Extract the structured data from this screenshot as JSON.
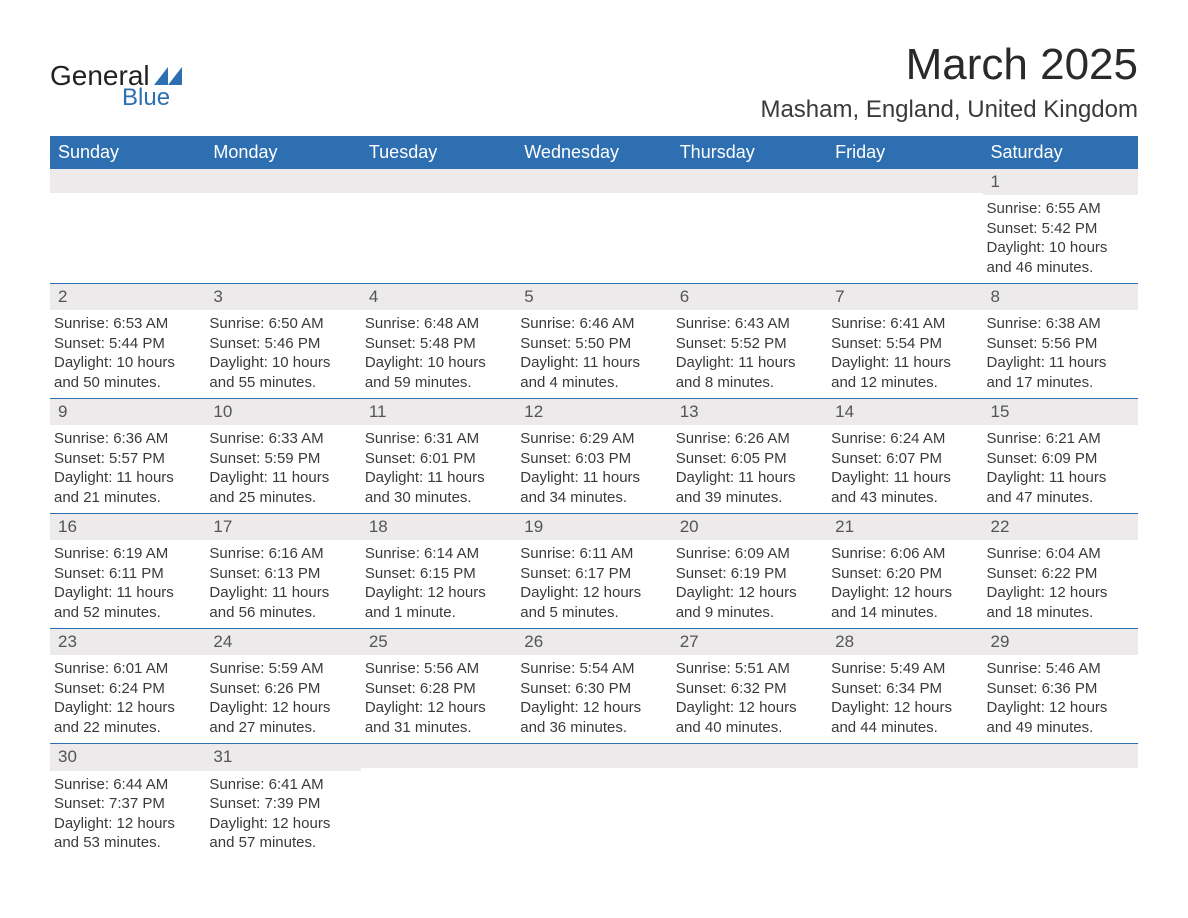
{
  "logo": {
    "text1": "General",
    "text2": "Blue",
    "shape_color": "#2d6fb0"
  },
  "header": {
    "title": "March 2025",
    "location": "Masham, England, United Kingdom",
    "title_fontsize": 44,
    "location_fontsize": 24
  },
  "colors": {
    "header_bg": "#2d6fb0",
    "header_text": "#ffffff",
    "daynum_bg": "#eceaea",
    "text": "#3a3a3a",
    "row_divider": "#2d6fb0",
    "background": "#ffffff"
  },
  "weekdays": [
    "Sunday",
    "Monday",
    "Tuesday",
    "Wednesday",
    "Thursday",
    "Friday",
    "Saturday"
  ],
  "labels": {
    "sunrise": "Sunrise:",
    "sunset": "Sunset:",
    "daylight": "Daylight:"
  },
  "weeks": [
    [
      {
        "empty": true
      },
      {
        "empty": true
      },
      {
        "empty": true
      },
      {
        "empty": true
      },
      {
        "empty": true
      },
      {
        "empty": true
      },
      {
        "day": "1",
        "sunrise": "6:55 AM",
        "sunset": "5:42 PM",
        "daylight": "10 hours and 46 minutes."
      }
    ],
    [
      {
        "day": "2",
        "sunrise": "6:53 AM",
        "sunset": "5:44 PM",
        "daylight": "10 hours and 50 minutes."
      },
      {
        "day": "3",
        "sunrise": "6:50 AM",
        "sunset": "5:46 PM",
        "daylight": "10 hours and 55 minutes."
      },
      {
        "day": "4",
        "sunrise": "6:48 AM",
        "sunset": "5:48 PM",
        "daylight": "10 hours and 59 minutes."
      },
      {
        "day": "5",
        "sunrise": "6:46 AM",
        "sunset": "5:50 PM",
        "daylight": "11 hours and 4 minutes."
      },
      {
        "day": "6",
        "sunrise": "6:43 AM",
        "sunset": "5:52 PM",
        "daylight": "11 hours and 8 minutes."
      },
      {
        "day": "7",
        "sunrise": "6:41 AM",
        "sunset": "5:54 PM",
        "daylight": "11 hours and 12 minutes."
      },
      {
        "day": "8",
        "sunrise": "6:38 AM",
        "sunset": "5:56 PM",
        "daylight": "11 hours and 17 minutes."
      }
    ],
    [
      {
        "day": "9",
        "sunrise": "6:36 AM",
        "sunset": "5:57 PM",
        "daylight": "11 hours and 21 minutes."
      },
      {
        "day": "10",
        "sunrise": "6:33 AM",
        "sunset": "5:59 PM",
        "daylight": "11 hours and 25 minutes."
      },
      {
        "day": "11",
        "sunrise": "6:31 AM",
        "sunset": "6:01 PM",
        "daylight": "11 hours and 30 minutes."
      },
      {
        "day": "12",
        "sunrise": "6:29 AM",
        "sunset": "6:03 PM",
        "daylight": "11 hours and 34 minutes."
      },
      {
        "day": "13",
        "sunrise": "6:26 AM",
        "sunset": "6:05 PM",
        "daylight": "11 hours and 39 minutes."
      },
      {
        "day": "14",
        "sunrise": "6:24 AM",
        "sunset": "6:07 PM",
        "daylight": "11 hours and 43 minutes."
      },
      {
        "day": "15",
        "sunrise": "6:21 AM",
        "sunset": "6:09 PM",
        "daylight": "11 hours and 47 minutes."
      }
    ],
    [
      {
        "day": "16",
        "sunrise": "6:19 AM",
        "sunset": "6:11 PM",
        "daylight": "11 hours and 52 minutes."
      },
      {
        "day": "17",
        "sunrise": "6:16 AM",
        "sunset": "6:13 PM",
        "daylight": "11 hours and 56 minutes."
      },
      {
        "day": "18",
        "sunrise": "6:14 AM",
        "sunset": "6:15 PM",
        "daylight": "12 hours and 1 minute."
      },
      {
        "day": "19",
        "sunrise": "6:11 AM",
        "sunset": "6:17 PM",
        "daylight": "12 hours and 5 minutes."
      },
      {
        "day": "20",
        "sunrise": "6:09 AM",
        "sunset": "6:19 PM",
        "daylight": "12 hours and 9 minutes."
      },
      {
        "day": "21",
        "sunrise": "6:06 AM",
        "sunset": "6:20 PM",
        "daylight": "12 hours and 14 minutes."
      },
      {
        "day": "22",
        "sunrise": "6:04 AM",
        "sunset": "6:22 PM",
        "daylight": "12 hours and 18 minutes."
      }
    ],
    [
      {
        "day": "23",
        "sunrise": "6:01 AM",
        "sunset": "6:24 PM",
        "daylight": "12 hours and 22 minutes."
      },
      {
        "day": "24",
        "sunrise": "5:59 AM",
        "sunset": "6:26 PM",
        "daylight": "12 hours and 27 minutes."
      },
      {
        "day": "25",
        "sunrise": "5:56 AM",
        "sunset": "6:28 PM",
        "daylight": "12 hours and 31 minutes."
      },
      {
        "day": "26",
        "sunrise": "5:54 AM",
        "sunset": "6:30 PM",
        "daylight": "12 hours and 36 minutes."
      },
      {
        "day": "27",
        "sunrise": "5:51 AM",
        "sunset": "6:32 PM",
        "daylight": "12 hours and 40 minutes."
      },
      {
        "day": "28",
        "sunrise": "5:49 AM",
        "sunset": "6:34 PM",
        "daylight": "12 hours and 44 minutes."
      },
      {
        "day": "29",
        "sunrise": "5:46 AM",
        "sunset": "6:36 PM",
        "daylight": "12 hours and 49 minutes."
      }
    ],
    [
      {
        "day": "30",
        "sunrise": "6:44 AM",
        "sunset": "7:37 PM",
        "daylight": "12 hours and 53 minutes."
      },
      {
        "day": "31",
        "sunrise": "6:41 AM",
        "sunset": "7:39 PM",
        "daylight": "12 hours and 57 minutes."
      },
      {
        "empty": true
      },
      {
        "empty": true
      },
      {
        "empty": true
      },
      {
        "empty": true
      },
      {
        "empty": true
      }
    ]
  ]
}
